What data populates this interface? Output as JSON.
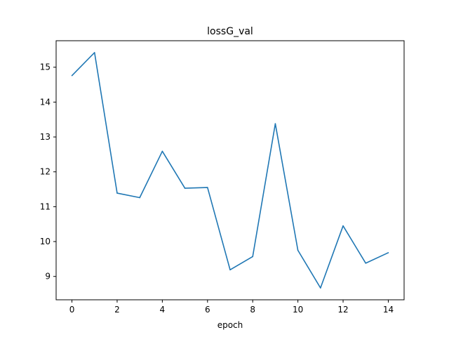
{
  "chart_data": {
    "type": "line",
    "title": "lossG_val",
    "xlabel": "epoch",
    "ylabel": "",
    "xlim": [
      -0.7,
      14.7
    ],
    "ylim": [
      8.33,
      15.76
    ],
    "xticks": [
      0,
      2,
      4,
      6,
      8,
      10,
      12,
      14
    ],
    "yticks": [
      9,
      10,
      11,
      12,
      13,
      14,
      15
    ],
    "grid": false,
    "legend": "none",
    "series": [
      {
        "color": "#1f77b4",
        "x": [
          0,
          1,
          2,
          3,
          4,
          5,
          6,
          7,
          8,
          9,
          10,
          11,
          12,
          13,
          14
        ],
        "y": [
          14.76,
          15.42,
          11.39,
          11.26,
          12.59,
          11.53,
          11.55,
          9.19,
          9.57,
          13.38,
          9.75,
          8.67,
          10.45,
          9.38,
          9.68
        ]
      }
    ]
  }
}
